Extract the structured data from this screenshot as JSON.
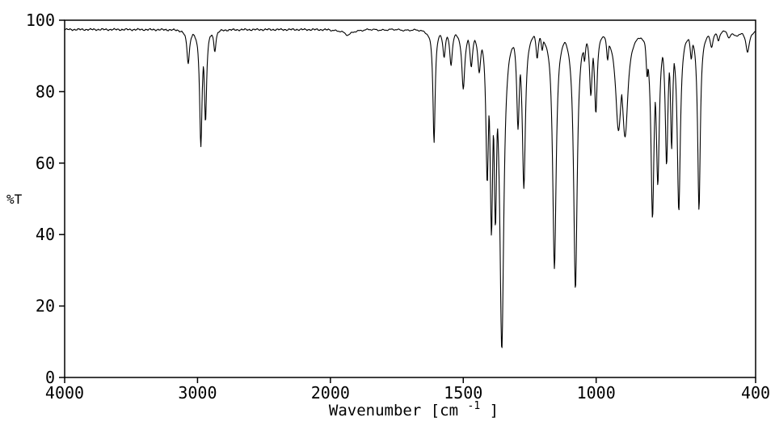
{
  "chart_data": {
    "type": "line",
    "title": "",
    "ylabel": "%T",
    "xlabel_prefix": "Wavenumber [cm",
    "xlabel_sup": "-1",
    "xlabel_suffix": "]",
    "x_ticks": [
      4000,
      3000,
      2000,
      1500,
      1000,
      400
    ],
    "y_ticks": [
      0,
      20,
      40,
      60,
      80,
      100
    ],
    "x_axis": {
      "max": 4000,
      "min": 400,
      "direction": "reversed",
      "scale_break_at": 2000,
      "compression_factor_above_break": 2
    },
    "y_axis": {
      "min": 0,
      "max": 100
    },
    "line_color": "#000000",
    "background": "#ffffff",
    "baseline_T": 97.4,
    "noise_amplitude": 0.25,
    "peaks_format": "[wavenumber_cm-1, %T_at_minimum, half_width_cm-1]",
    "peaks": [
      [
        3070,
        88.0,
        12
      ],
      [
        2975,
        65.0,
        11
      ],
      [
        2940,
        72.0,
        10
      ],
      [
        2870,
        91.5,
        10
      ],
      [
        1935,
        95.8,
        18
      ],
      [
        1610,
        66.0,
        5
      ],
      [
        1572,
        90.0,
        6
      ],
      [
        1546,
        88.0,
        6
      ],
      [
        1500,
        81.0,
        7
      ],
      [
        1470,
        87.5,
        6
      ],
      [
        1440,
        86.5,
        7
      ],
      [
        1410,
        57.0,
        6
      ],
      [
        1394,
        44.0,
        6
      ],
      [
        1379,
        47.0,
        6
      ],
      [
        1355,
        9.0,
        9
      ],
      [
        1294,
        71.0,
        6
      ],
      [
        1272,
        54.0,
        7
      ],
      [
        1222,
        90.0,
        5
      ],
      [
        1203,
        92.5,
        5
      ],
      [
        1157,
        31.0,
        8
      ],
      [
        1078,
        25.0,
        8
      ],
      [
        1044,
        90.0,
        5
      ],
      [
        1020,
        80.0,
        6
      ],
      [
        1001,
        75.0,
        6
      ],
      [
        957,
        90.0,
        5
      ],
      [
        916,
        71.0,
        13
      ],
      [
        891,
        69.0,
        13
      ],
      [
        808,
        86.0,
        5
      ],
      [
        788,
        46.0,
        7
      ],
      [
        768,
        56.0,
        7
      ],
      [
        735,
        61.0,
        6
      ],
      [
        716,
        66.0,
        5
      ],
      [
        689,
        47.0,
        7
      ],
      [
        642,
        90.0,
        5
      ],
      [
        613,
        47.0,
        6
      ],
      [
        566,
        93.0,
        7
      ],
      [
        540,
        94.5,
        6
      ],
      [
        500,
        95.5,
        8
      ],
      [
        470,
        96.0,
        30
      ],
      [
        430,
        91.0,
        8
      ]
    ]
  }
}
